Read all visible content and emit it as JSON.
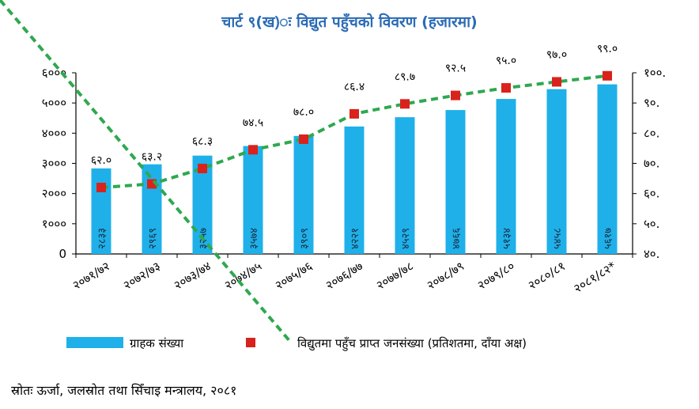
{
  "title": "चार्ट ९(ख)ः  विद्युत पहुँचको विवरण (हजारमा)",
  "source": "स्रोतः ऊर्जा, जलस्रोत तथा सिँचाइ मन्त्रालय, २०८१",
  "colors": {
    "bar": "#1fb0ea",
    "line": "#2fa84f",
    "marker": "#d9221c",
    "title": "#2b6cb5"
  },
  "chart_data": {
    "type": "bar+line",
    "title": "चार्ट ९(ख)ः  विद्युत पहुँचको विवरण (हजारमा)",
    "categories": [
      "२०७१/७२",
      "२०७२/७३",
      "२०७३/७४",
      "२०७४/७५",
      "२०७५/७६",
      "२०७६/७७",
      "२०७७/७८",
      "२०७८/७९",
      "२०७९/८०",
      "२०८०/८१",
      "२०८१/८२*"
    ],
    "series": [
      {
        "name": "ग्राहक संख्या",
        "type": "bar",
        "axis": "left",
        "values": [
          2833,
          2969,
          3257,
          3574,
          3909,
          4221,
          4529,
          4766,
          5134,
          5458,
          5617
        ],
        "labels": [
          "२८३३",
          "२९६९",
          "३२५७",
          "३५७४",
          "३९०९",
          "४२२१",
          "४५२९",
          "४७६६",
          "५१३४",
          "५४५८",
          "५६१७"
        ]
      },
      {
        "name": "विद्युतमा पहुँच प्राप्त जनसंख्या (प्रतिशतमा, दाँया अक्ष)",
        "type": "line",
        "axis": "right",
        "values": [
          62.0,
          63.2,
          68.3,
          74.5,
          78.0,
          86.4,
          89.7,
          92.5,
          95.0,
          97.0,
          99.0
        ],
        "labels": [
          "६२.०",
          "६३.२",
          "६८.३",
          "७४.५",
          "७८.०",
          "८६.४",
          "८९.७",
          "९२.५",
          "९५.०",
          "९७.०",
          "९९.०"
        ]
      }
    ],
    "left_axis": {
      "min": 0,
      "max": 6000,
      "ticks": [
        "0",
        "१०००",
        "२०००",
        "३०००",
        "४०००",
        "५०००",
        "६०००"
      ]
    },
    "right_axis": {
      "min": 40,
      "max": 100,
      "ticks": [
        "४०.",
        "५०.",
        "६०.",
        "७०.",
        "८०.",
        "९०.",
        "१००."
      ]
    },
    "legend": [
      {
        "type": "bar",
        "label": "ग्राहक संख्या"
      },
      {
        "type": "line",
        "label": "विद्युतमा पहुँच प्राप्त जनसंख्या (प्रतिशतमा, दाँया अक्ष)"
      }
    ],
    "legend_position": "bottom"
  }
}
